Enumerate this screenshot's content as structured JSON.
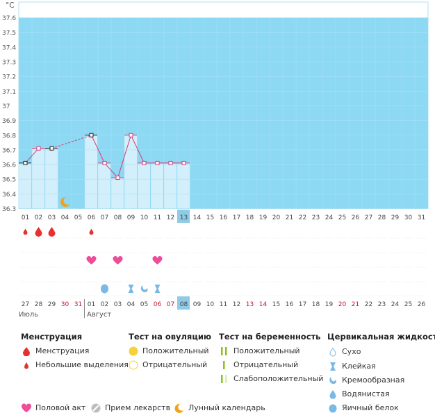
{
  "chart_data": {
    "type": "line",
    "unit_label": "°C",
    "y_ticks": [
      "36.3",
      "36.4",
      "36.5",
      "36.6",
      "36.7",
      "36.8",
      "36.9",
      "37",
      "37.1",
      "37.2",
      "37.3",
      "37.4",
      "37.5",
      "37.6"
    ],
    "ylim": [
      36.3,
      37.6
    ],
    "cycle_days": [
      "01",
      "02",
      "03",
      "04",
      "05",
      "06",
      "07",
      "08",
      "09",
      "10",
      "11",
      "12",
      "13",
      "14",
      "15",
      "16",
      "17",
      "18",
      "19",
      "20",
      "21",
      "22",
      "23",
      "24",
      "25",
      "26",
      "27",
      "28",
      "29",
      "30",
      "31"
    ],
    "current_day": "13",
    "temperatures": [
      36.61,
      36.71,
      36.71,
      null,
      null,
      36.8,
      36.61,
      36.51,
      36.8,
      36.61,
      36.61,
      36.61,
      36.61
    ],
    "temperature_markers": [
      "black",
      "pink",
      "black",
      null,
      null,
      "black",
      "pink",
      "pink",
      "pink",
      "pink",
      "pink",
      "pink",
      "pink"
    ],
    "moon_day": "04",
    "menstruation": [
      {
        "day": "01",
        "kind": "light"
      },
      {
        "day": "02",
        "kind": "full"
      },
      {
        "day": "03",
        "kind": "full"
      },
      {
        "day": "06",
        "kind": "light"
      }
    ],
    "intercourse_days": [
      "06",
      "08",
      "11"
    ],
    "cervical_fluid": [
      {
        "day": "07",
        "kind": "eggwhite"
      },
      {
        "day": "09",
        "kind": "sticky"
      },
      {
        "day": "10",
        "kind": "creamy"
      },
      {
        "day": "11",
        "kind": "sticky"
      }
    ],
    "calendar_dates": [
      {
        "label": "27",
        "weekend": false
      },
      {
        "label": "28",
        "weekend": false
      },
      {
        "label": "29",
        "weekend": false
      },
      {
        "label": "30",
        "weekend": true
      },
      {
        "label": "31",
        "weekend": true
      },
      {
        "label": "01",
        "weekend": false
      },
      {
        "label": "02",
        "weekend": false
      },
      {
        "label": "03",
        "weekend": false
      },
      {
        "label": "04",
        "weekend": false
      },
      {
        "label": "05",
        "weekend": false
      },
      {
        "label": "06",
        "weekend": true
      },
      {
        "label": "07",
        "weekend": true
      },
      {
        "label": "08",
        "weekend": false
      },
      {
        "label": "09",
        "weekend": false
      },
      {
        "label": "10",
        "weekend": false
      },
      {
        "label": "11",
        "weekend": false
      },
      {
        "label": "12",
        "weekend": false
      },
      {
        "label": "13",
        "weekend": true
      },
      {
        "label": "14",
        "weekend": true
      },
      {
        "label": "15",
        "weekend": false
      },
      {
        "label": "16",
        "weekend": false
      },
      {
        "label": "17",
        "weekend": false
      },
      {
        "label": "18",
        "weekend": false
      },
      {
        "label": "19",
        "weekend": false
      },
      {
        "label": "20",
        "weekend": true
      },
      {
        "label": "21",
        "weekend": true
      },
      {
        "label": "22",
        "weekend": false
      },
      {
        "label": "23",
        "weekend": false
      },
      {
        "label": "24",
        "weekend": false
      },
      {
        "label": "25",
        "weekend": false
      },
      {
        "label": "26",
        "weekend": false
      }
    ],
    "months": [
      {
        "label": "Июль",
        "start_col": 0
      },
      {
        "label": "Август",
        "start_col": 5
      }
    ]
  },
  "colors": {
    "chart_bg": "#8dd8f3",
    "bar_fill": "#d2effb",
    "grid": "#a8e2f7",
    "highlight": "#8fcbe6",
    "line": "#d63c78",
    "weekend": "#c8102e",
    "drop": "#e8302f",
    "heart": "#ef4c9a",
    "fluid": "#7ab8e6",
    "moon": "#f3a21b",
    "ovu_pos": "#f6d13a",
    "preg": "#8cc21f"
  },
  "legend": {
    "menstruation": {
      "title": "Менструация",
      "items": [
        {
          "label": "Менструация",
          "icon": "blood-drop-icon"
        },
        {
          "label": "Небольшие выделения",
          "icon": "small-drop-icon"
        }
      ]
    },
    "ovulation": {
      "title": "Тест на овуляцию",
      "items": [
        {
          "label": "Положительный",
          "icon": "filled-circle-icon"
        },
        {
          "label": "Отрицательный",
          "icon": "empty-circle-icon"
        }
      ]
    },
    "pregnancy": {
      "title": "Тест на беременность",
      "items": [
        {
          "label": "Положительный",
          "icon": "two-lines-icon"
        },
        {
          "label": "Отрицательный",
          "icon": "one-line-icon"
        },
        {
          "label": "Слабоположительный",
          "icon": "faint-lines-icon"
        }
      ]
    },
    "cervical": {
      "title": "Цервикальная жидкость",
      "items": [
        {
          "label": "Сухо",
          "icon": "dry-icon"
        },
        {
          "label": "Клейкая",
          "icon": "sticky-icon"
        },
        {
          "label": "Кремообразная",
          "icon": "creamy-icon"
        },
        {
          "label": "Водянистая",
          "icon": "watery-icon"
        },
        {
          "label": "Яичный белок",
          "icon": "egg-white-icon"
        }
      ]
    },
    "bottom": [
      {
        "label": "Половой акт",
        "icon": "heart-icon"
      },
      {
        "label": "Прием лекарств",
        "icon": "pill-icon"
      },
      {
        "label": "Лунный календарь",
        "icon": "moon-icon"
      }
    ]
  }
}
